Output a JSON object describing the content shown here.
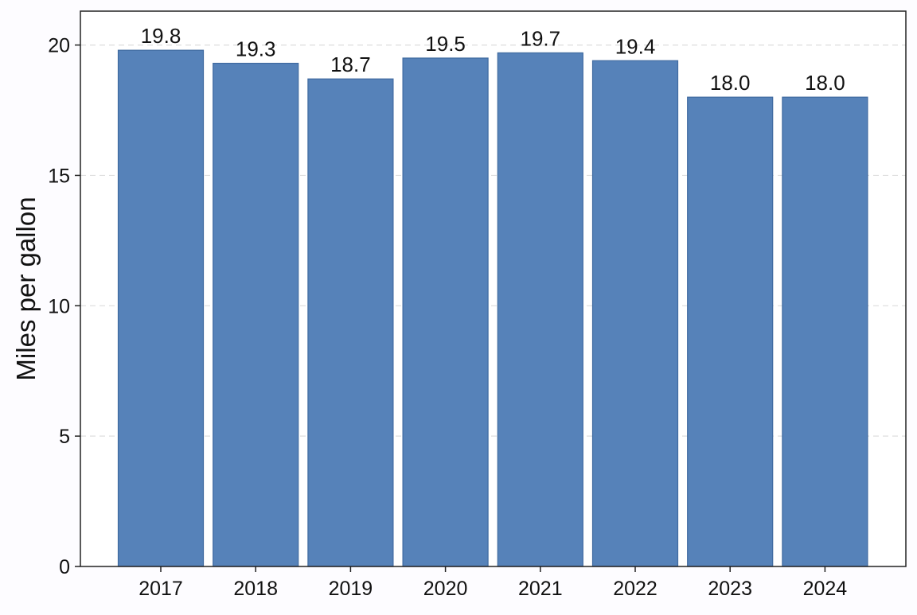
{
  "chart_data": {
    "type": "bar",
    "title": "",
    "xlabel": "",
    "ylabel": "Miles per gallon",
    "categories": [
      "2017",
      "2018",
      "2019",
      "2020",
      "2021",
      "2022",
      "2023",
      "2024"
    ],
    "values": [
      19.8,
      19.3,
      18.7,
      19.5,
      19.7,
      19.4,
      18.0,
      18.0
    ],
    "data_labels": [
      "19.8",
      "19.3",
      "18.7",
      "19.5",
      "19.7",
      "19.4",
      "18.0",
      "18.0"
    ],
    "ylim": [
      0,
      21.3
    ],
    "yticks": [
      0,
      5,
      10,
      15,
      20
    ],
    "ytick_labels": [
      "0",
      "5",
      "10",
      "15",
      "20"
    ],
    "grid": "horizontal dashed",
    "legend": "none",
    "colors": {
      "bar_fill": "#5682b9",
      "bar_stroke": "#3f6aa0",
      "grid": "#dddddd",
      "axis": "#222222",
      "plot_background": "#ffffff",
      "page_background": "#fdfcff"
    }
  }
}
